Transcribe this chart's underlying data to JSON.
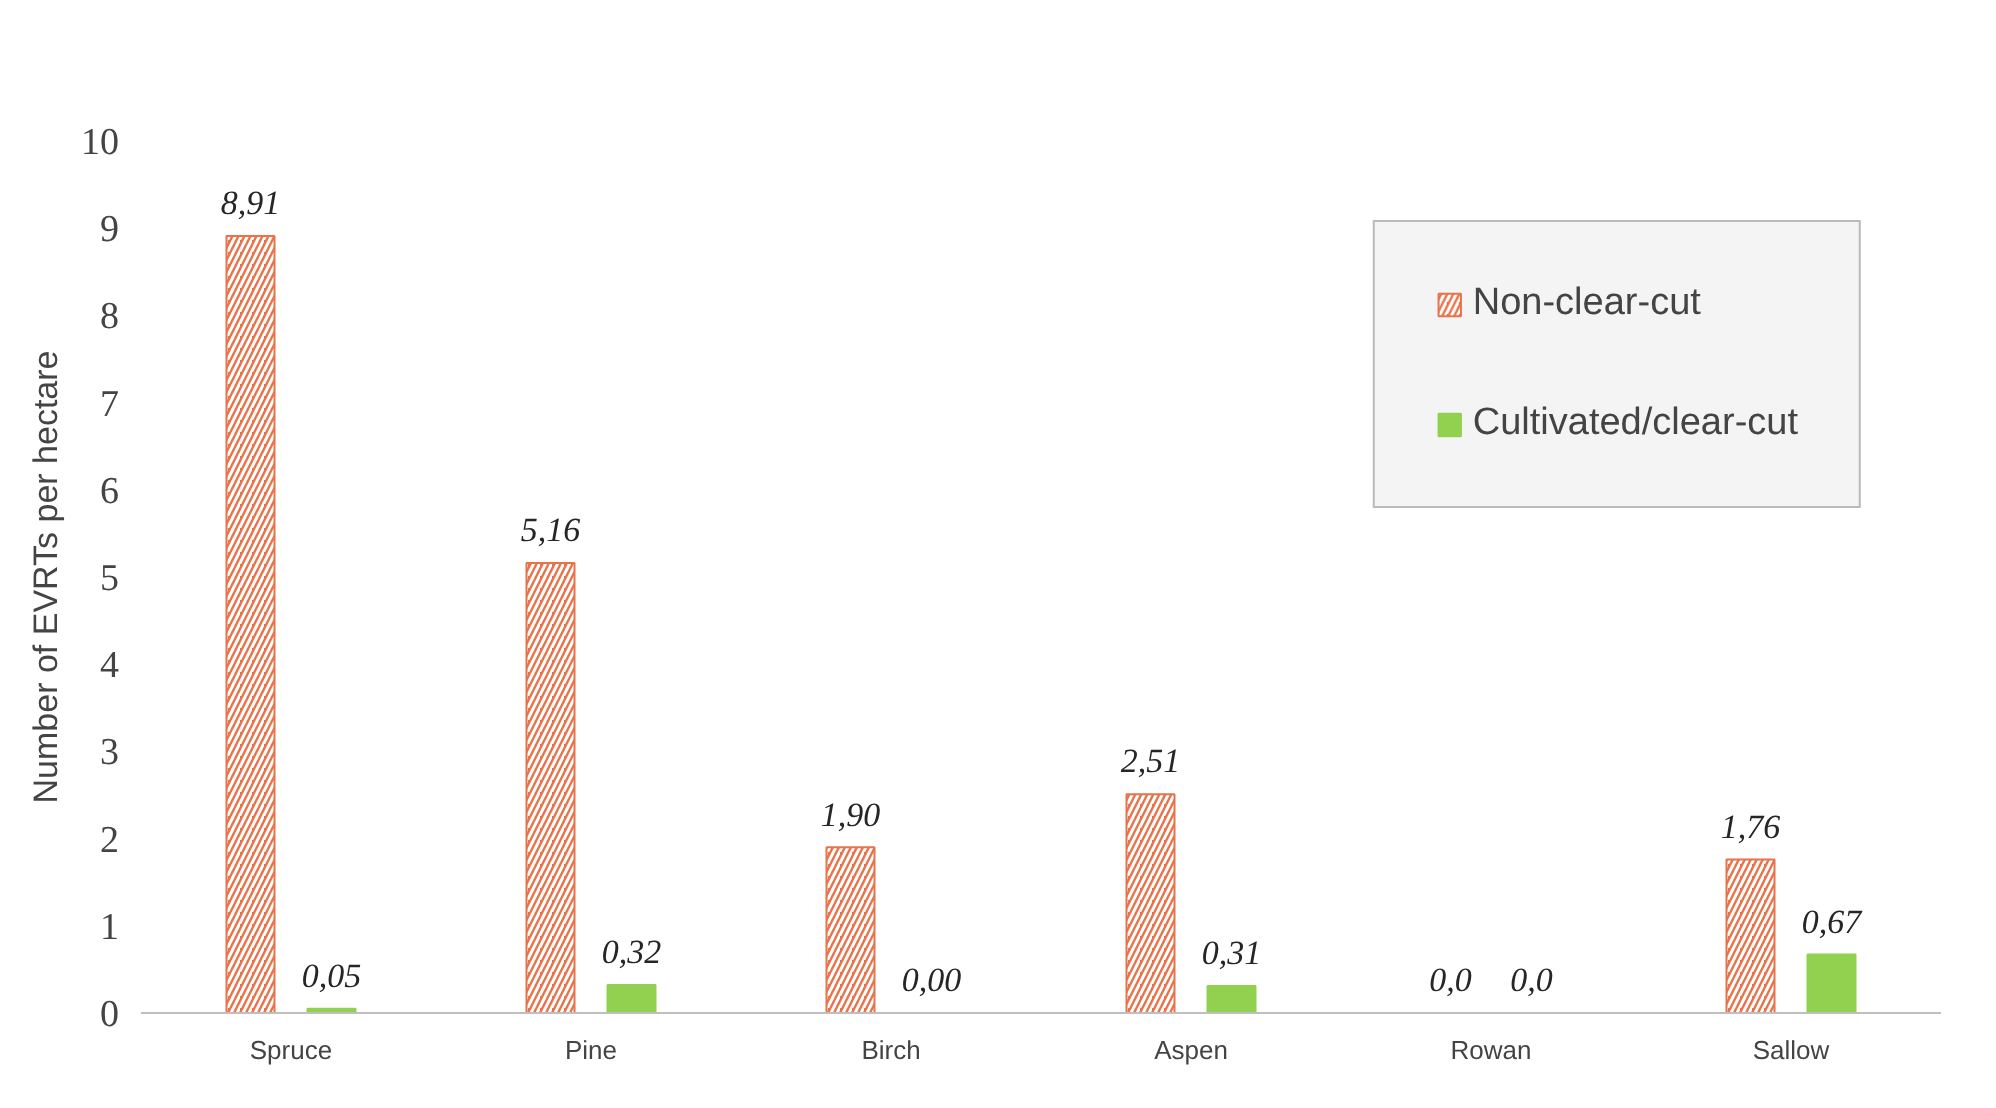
{
  "chart_data": {
    "type": "bar",
    "ylabel": "Number of EVRTs per hectare",
    "categories": [
      "Spruce",
      "Pine",
      "Birch",
      "Aspen",
      "Rowan",
      "Sallow"
    ],
    "series": [
      {
        "name": "Non-clear-cut",
        "color": "#e8734a",
        "values": [
          8.91,
          5.16,
          1.9,
          2.51,
          0.0,
          1.76
        ],
        "value_labels": [
          "8,91",
          "5,16",
          "1,90",
          "2,51",
          "0,0",
          "1,76"
        ]
      },
      {
        "name": "Cultivated/clear-cut",
        "color": "#92d050",
        "values": [
          0.05,
          0.32,
          0.0,
          0.31,
          0.0,
          0.67
        ],
        "value_labels": [
          "0,05",
          "0,32",
          "0,00",
          "0,31",
          "0,0",
          "0,67"
        ]
      }
    ],
    "ylim": [
      0,
      10
    ],
    "yticks": [
      0,
      1,
      2,
      3,
      4,
      5,
      6,
      7,
      8,
      9,
      10
    ],
    "grid": false,
    "legend": "top right"
  }
}
